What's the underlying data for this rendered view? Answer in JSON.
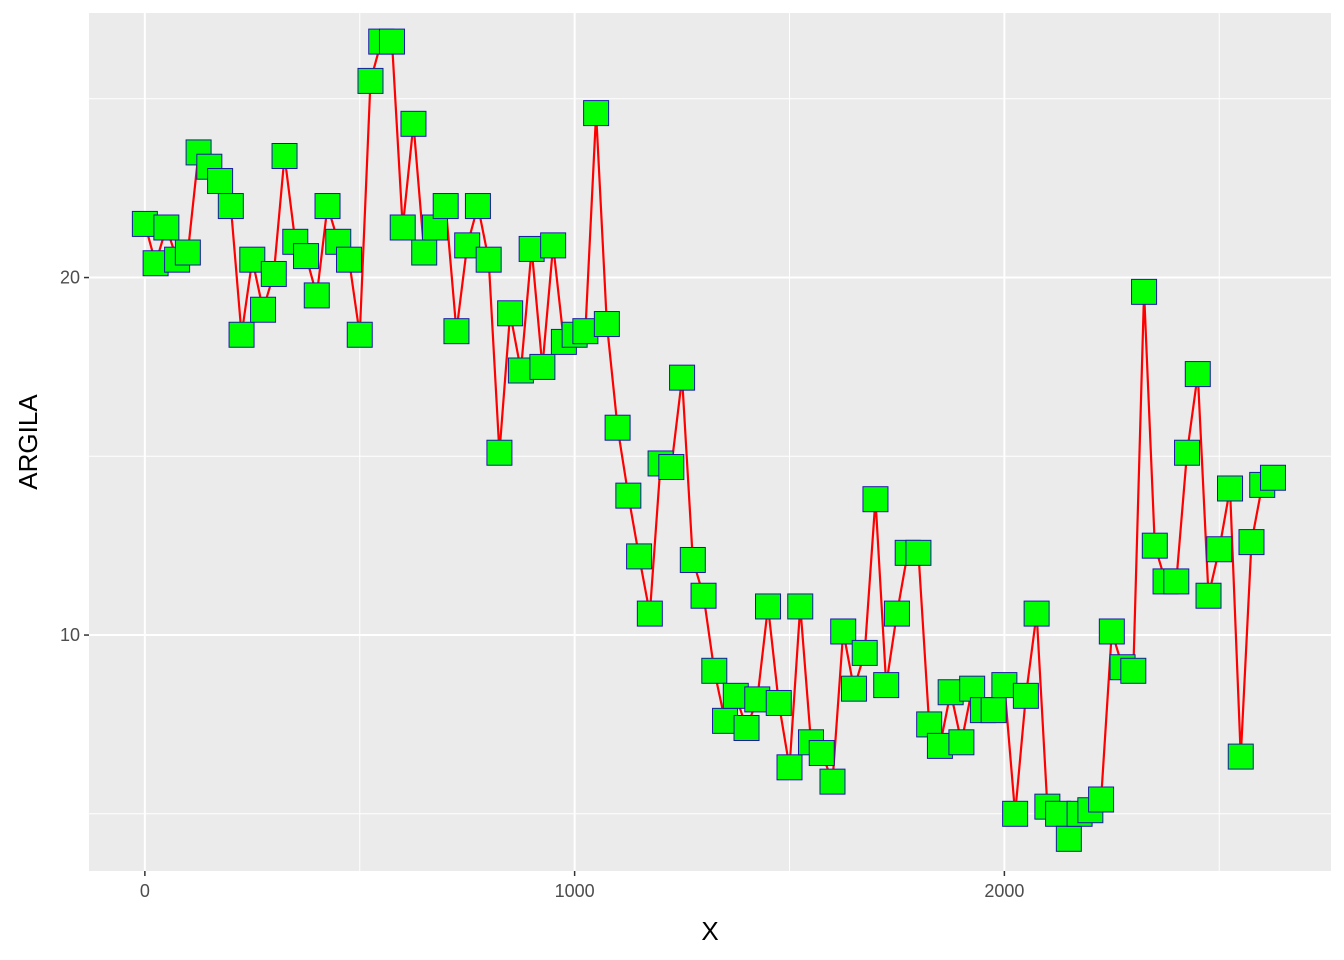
{
  "chart_data": {
    "type": "line",
    "xlabel": "X",
    "ylabel": "ARGILA",
    "xlim": [
      -130,
      2760
    ],
    "ylim": [
      3.4,
      27.4
    ],
    "x_ticks": [
      0,
      1000,
      2000
    ],
    "x_tick_labels": [
      "0",
      "1000",
      "2000"
    ],
    "y_ticks": [
      10,
      20
    ],
    "y_tick_labels": [
      "10",
      "20"
    ],
    "grid": true,
    "legend": "none",
    "colors": {
      "panel": "#ebebeb",
      "grid": "#ffffff",
      "line": "#ff0000",
      "marker_fill": "#00ff00",
      "marker_edge": "#1a1aa8"
    },
    "series": [
      {
        "x": [
          0,
          25,
          50,
          75,
          100,
          125,
          150,
          175,
          200,
          225,
          250,
          275,
          300,
          325,
          350,
          375,
          400,
          425,
          450,
          475,
          500,
          525,
          550,
          575,
          600,
          625,
          650,
          675,
          700,
          725,
          750,
          775,
          800,
          825,
          850,
          875,
          900,
          925,
          950,
          975,
          1000,
          1025,
          1050,
          1075,
          1100,
          1125,
          1150,
          1175,
          1200,
          1225,
          1250,
          1275,
          1300,
          1325,
          1350,
          1375,
          1400,
          1425,
          1450,
          1475,
          1500,
          1525,
          1550,
          1575,
          1600,
          1625,
          1650,
          1675,
          1700,
          1725,
          1750,
          1775,
          1800,
          1825,
          1850,
          1875,
          1900,
          1925,
          1950,
          1975,
          2000,
          2025,
          2050,
          2075,
          2100,
          2125,
          2150,
          2175,
          2200,
          2225,
          2250,
          2275,
          2300,
          2325,
          2350,
          2375,
          2400,
          2425,
          2450,
          2475,
          2500,
          2525,
          2550,
          2575,
          2600,
          2625
        ],
        "values": [
          21.5,
          20.4,
          21.4,
          20.5,
          20.7,
          23.5,
          23.1,
          22.7,
          22.0,
          18.4,
          20.5,
          19.1,
          20.1,
          23.4,
          21.0,
          20.6,
          19.5,
          22.0,
          21.0,
          20.5,
          18.4,
          25.5,
          26.6,
          26.6,
          21.4,
          24.3,
          20.7,
          21.4,
          22.0,
          18.5,
          20.9,
          22.0,
          20.5,
          15.1,
          19.0,
          17.4,
          20.8,
          17.5,
          20.9,
          18.2,
          18.4,
          18.5,
          24.6,
          18.7,
          15.8,
          13.9,
          12.2,
          10.6,
          14.8,
          14.7,
          17.2,
          12.1,
          11.1,
          9.0,
          7.6,
          8.3,
          7.4,
          8.2,
          10.8,
          8.1,
          6.3,
          10.8,
          7.0,
          6.7,
          5.9,
          10.1,
          8.5,
          9.5,
          13.8,
          8.6,
          10.6,
          12.3,
          12.3,
          7.5,
          6.9,
          8.4,
          7.0,
          8.5,
          7.9,
          7.9,
          8.6,
          5.0,
          8.3,
          10.6,
          5.2,
          5.0,
          4.3,
          5.0,
          5.1,
          5.4,
          10.1,
          9.1,
          9.0,
          19.6,
          12.5,
          11.5,
          11.5,
          15.1,
          17.3,
          11.1,
          12.4,
          14.1,
          6.6,
          12.6,
          14.2,
          14.4
        ]
      }
    ]
  }
}
